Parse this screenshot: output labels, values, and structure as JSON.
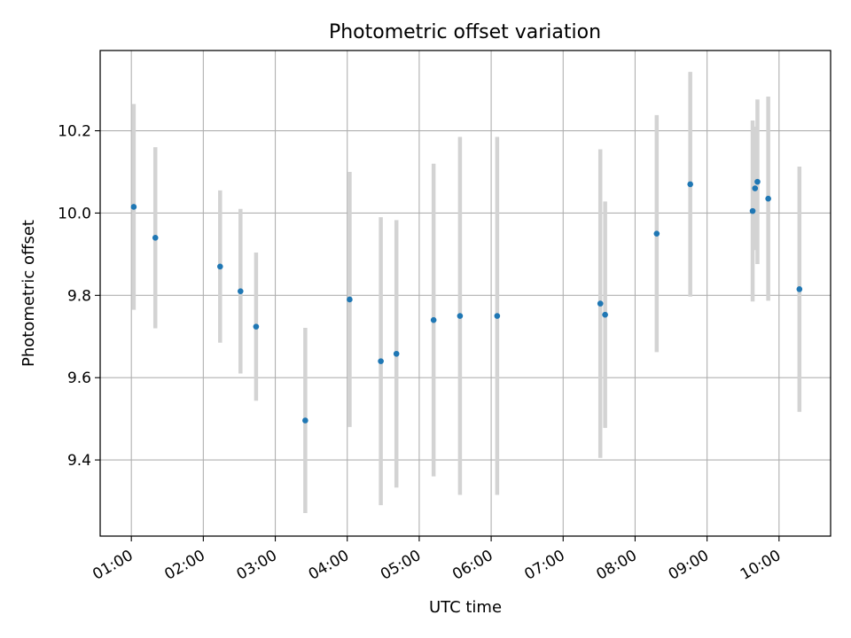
{
  "chart_data": {
    "type": "scatter",
    "title": "Photometric offset variation",
    "xlabel": "UTC time",
    "ylabel": "Photometric offset",
    "x_ticks": [
      "01:00",
      "02:00",
      "03:00",
      "04:00",
      "05:00",
      "06:00",
      "07:00",
      "08:00",
      "09:00",
      "10:00"
    ],
    "y_ticks": [
      "9.4",
      "9.6",
      "9.8",
      "10.0",
      "10.2"
    ],
    "xlim": [
      "00:34",
      "10:43"
    ],
    "ylim": [
      9.215,
      10.395
    ],
    "grid": true,
    "colors": {
      "point": "#1f77b4",
      "error_bar": "#d3d3d3",
      "grid": "#b0b0b0"
    },
    "points": [
      {
        "x": "01:02",
        "y": 10.015,
        "err": 0.25
      },
      {
        "x": "01:20",
        "y": 9.94,
        "err": 0.22
      },
      {
        "x": "02:14",
        "y": 9.87,
        "err": 0.185
      },
      {
        "x": "02:31",
        "y": 9.81,
        "err": 0.2
      },
      {
        "x": "02:44",
        "y": 9.724,
        "err": 0.18
      },
      {
        "x": "03:25",
        "y": 9.496,
        "err": 0.225
      },
      {
        "x": "04:02",
        "y": 9.79,
        "err": 0.31
      },
      {
        "x": "04:28",
        "y": 9.64,
        "err": 0.35
      },
      {
        "x": "04:41",
        "y": 9.658,
        "err": 0.325
      },
      {
        "x": "05:12",
        "y": 9.74,
        "err": 0.38
      },
      {
        "x": "05:34",
        "y": 9.75,
        "err": 0.435
      },
      {
        "x": "06:05",
        "y": 9.75,
        "err": 0.435
      },
      {
        "x": "07:31",
        "y": 9.78,
        "err": 0.375
      },
      {
        "x": "07:35",
        "y": 9.753,
        "err": 0.275
      },
      {
        "x": "08:18",
        "y": 9.95,
        "err": 0.288
      },
      {
        "x": "08:46",
        "y": 10.07,
        "err": 0.273
      },
      {
        "x": "09:38",
        "y": 10.005,
        "err": 0.22
      },
      {
        "x": "09:40",
        "y": 10.06,
        "err": 0.15
      },
      {
        "x": "09:42",
        "y": 10.076,
        "err": 0.2
      },
      {
        "x": "09:51",
        "y": 10.035,
        "err": 0.248
      },
      {
        "x": "10:17",
        "y": 9.815,
        "err": 0.298
      }
    ]
  }
}
